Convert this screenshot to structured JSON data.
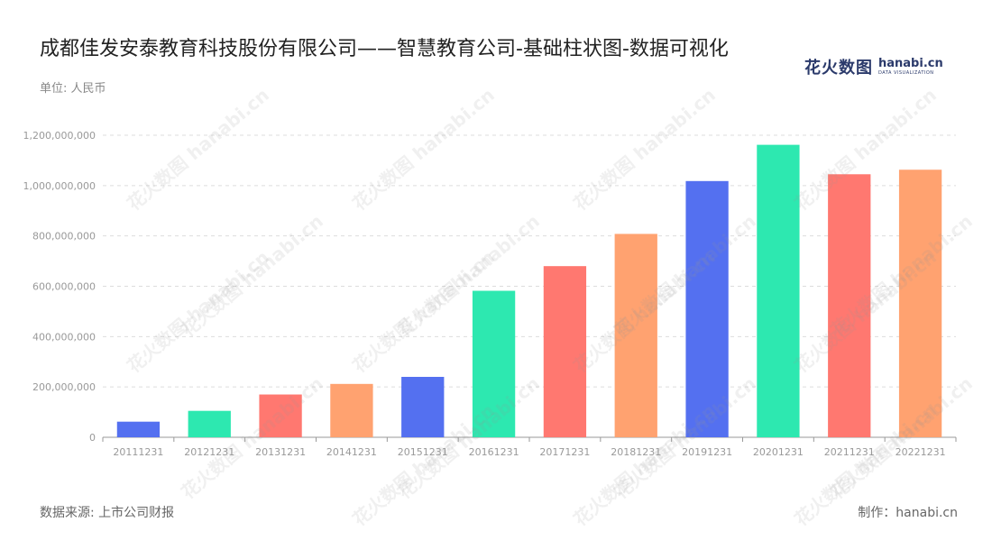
{
  "header": {
    "title": "成都佳发安泰教育科技股份有限公司——智慧教育公司-基础柱状图-数据可视化",
    "unit": "单位: 人民币"
  },
  "logo": {
    "cn": "花火数图",
    "en": "hanabi.cn",
    "tagline": "DATA VISUALIZATION"
  },
  "footer": {
    "source": "数据来源: 上市公司财报",
    "credit": "制作：hanabi.cn"
  },
  "watermark": "花火数图 hanabi.cn",
  "colors": {
    "palette": [
      "#5470f0",
      "#2de8b0",
      "#ff7870",
      "#ffa270"
    ],
    "grid": "#dddddd",
    "axis": "#999999",
    "tick_text": "#999999"
  },
  "chart_data": {
    "type": "bar",
    "categories": [
      "20111231",
      "20121231",
      "20131231",
      "20141231",
      "20151231",
      "20161231",
      "20171231",
      "20181231",
      "20191231",
      "20201231",
      "20211231",
      "20221231"
    ],
    "values": [
      62000000,
      105000000,
      170000000,
      212000000,
      240000000,
      582000000,
      680000000,
      808000000,
      1018000000,
      1162000000,
      1045000000,
      1063000000
    ],
    "yticks": [
      "0",
      "200,000,000",
      "400,000,000",
      "600,000,000",
      "800,000,000",
      "1,000,000,000",
      "1,200,000,000"
    ],
    "ylim": [
      0,
      1200000000
    ],
    "grid": true,
    "title": "成都佳发安泰教育科技股份有限公司——智慧教育公司-基础柱状图-数据可视化"
  }
}
